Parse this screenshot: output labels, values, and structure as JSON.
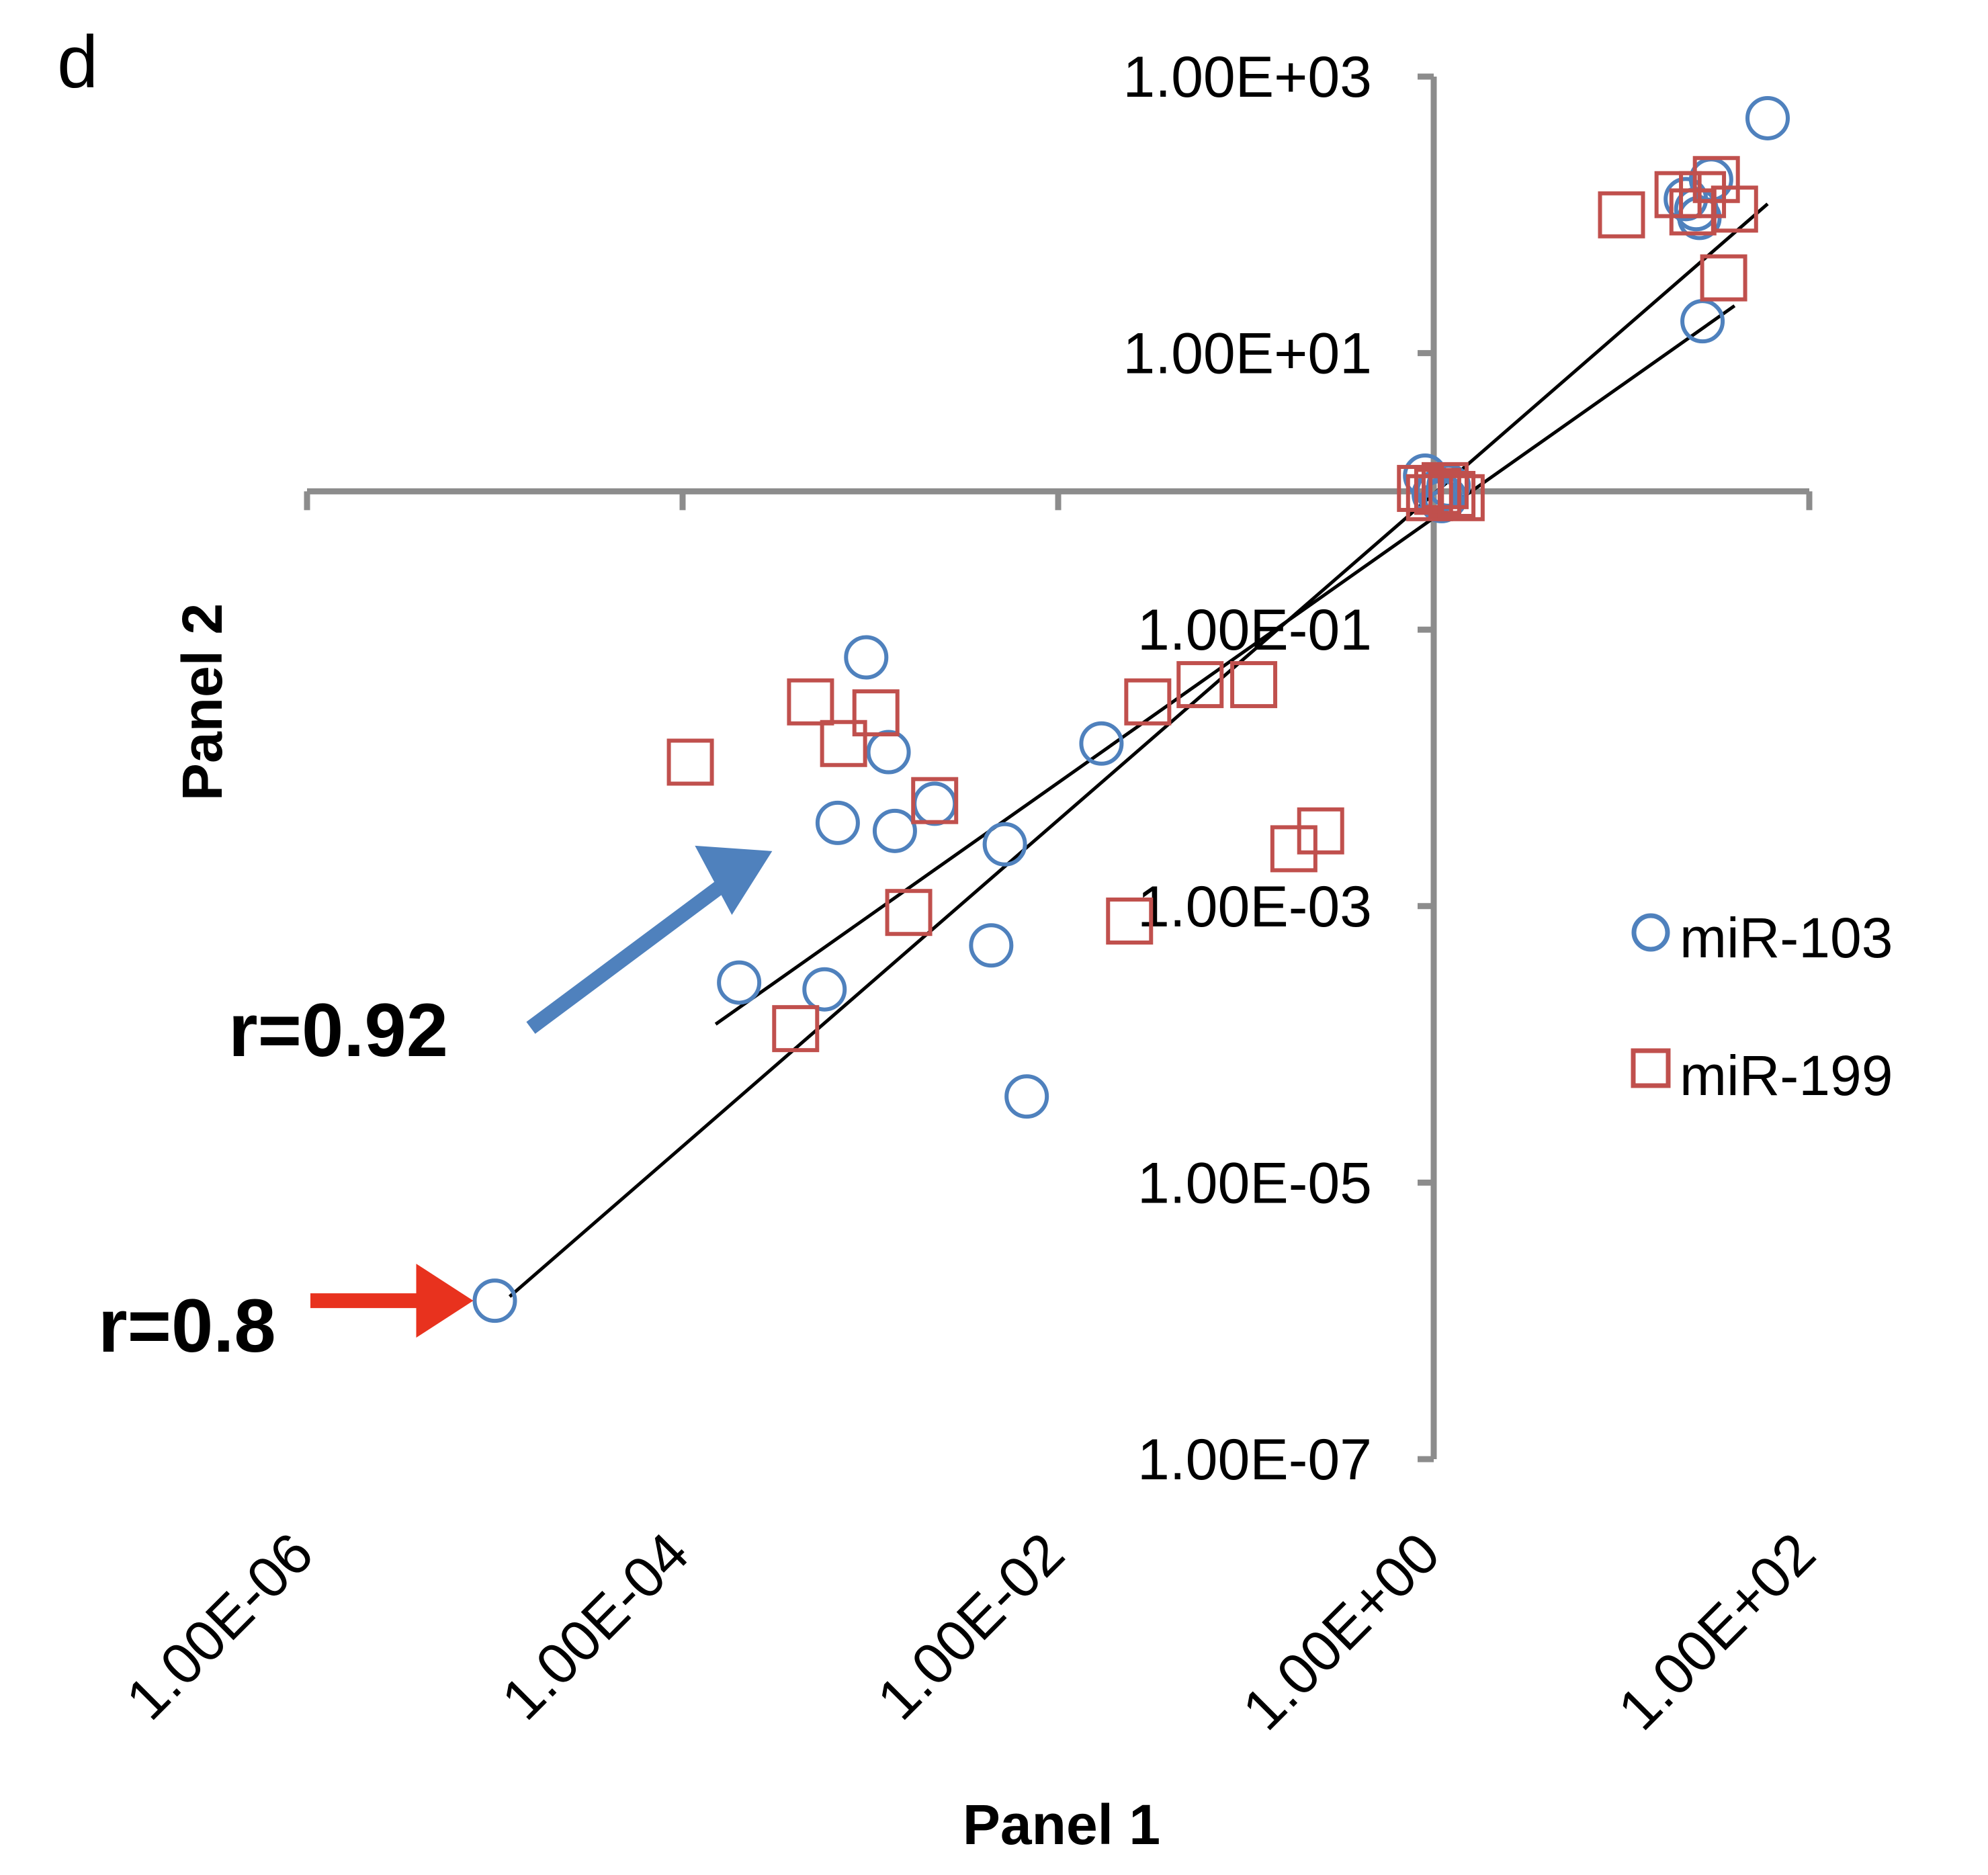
{
  "panel_label": "d",
  "colors": {
    "axis": "#8c8c8c",
    "series_a": "#4f81bd",
    "series_b": "#c0504d",
    "trendline": "#000000",
    "arrow_a": "#4f81bd",
    "arrow_b": "#e8321e"
  },
  "chart_data": {
    "type": "scatter",
    "title": "",
    "xlabel": "Panel 1",
    "ylabel": "Panel 2",
    "x_scale": "log",
    "y_scale": "log",
    "xlim": [
      1e-06,
      100
    ],
    "ylim": [
      1e-07,
      1000
    ],
    "x_tick_values": [
      1e-06,
      0.0001,
      0.01,
      1,
      100
    ],
    "x_tick_labels": [
      "1.00E-06",
      "1.00E-04",
      "1.00E-02",
      "1.00E+00",
      "1.00E+02"
    ],
    "y_tick_values": [
      1e-07,
      1e-05,
      0.001,
      0.1,
      10,
      1000
    ],
    "y_tick_labels": [
      "1.00E-07",
      "1.00E-05",
      "1.00E-03",
      "1.00E-01",
      "1.00E+01",
      "1.00E+03"
    ],
    "axes_cross_at": {
      "x": 1,
      "y": 1
    },
    "grid": false,
    "legend_position": "right",
    "series": [
      {
        "name": "miR-103",
        "marker": "circle",
        "points": [
          [
            1e-05,
            1.4e-06
          ],
          [
            0.0002,
            0.00028
          ],
          [
            0.00057,
            0.00025
          ],
          [
            0.00067,
            0.004
          ],
          [
            0.00095,
            0.063
          ],
          [
            0.00125,
            0.013
          ],
          [
            0.00135,
            0.0035
          ],
          [
            0.0022,
            0.0055
          ],
          [
            0.0052,
            0.0028
          ],
          [
            0.0044,
            0.00052
          ],
          [
            0.0068,
            4.2e-05
          ],
          [
            0.017,
            0.015
          ],
          [
            0.9,
            1.3
          ],
          [
            1.05,
            1.0
          ],
          [
            1.1,
            0.85
          ],
          [
            1.15,
            0.9
          ],
          [
            1.0,
            0.95
          ],
          [
            1.2,
            1.1
          ],
          [
            22,
            130
          ],
          [
            25,
            110
          ],
          [
            26,
            95
          ],
          [
            27,
            17
          ],
          [
            30,
            180
          ],
          [
            60,
            500
          ]
        ]
      },
      {
        "name": "miR-199",
        "marker": "square",
        "points": [
          [
            0.00011,
            0.011
          ],
          [
            0.0004,
            0.00013
          ],
          [
            0.00048,
            0.03
          ],
          [
            0.00072,
            0.015
          ],
          [
            0.00107,
            0.025
          ],
          [
            0.0016,
            0.0009
          ],
          [
            0.0022,
            0.0058
          ],
          [
            0.024,
            0.00078
          ],
          [
            0.03,
            0.03
          ],
          [
            0.057,
            0.04
          ],
          [
            0.11,
            0.04
          ],
          [
            0.18,
            0.0026
          ],
          [
            0.25,
            0.0035
          ],
          [
            0.85,
            1.05
          ],
          [
            0.95,
            0.9
          ],
          [
            1.05,
            1.0
          ],
          [
            1.15,
            1.1
          ],
          [
            1.25,
            0.95
          ],
          [
            1.4,
            0.9
          ],
          [
            10,
            100
          ],
          [
            20,
            140
          ],
          [
            24,
            105
          ],
          [
            27,
            140
          ],
          [
            32,
            180
          ],
          [
            40,
            110
          ],
          [
            35,
            35
          ]
        ]
      }
    ],
    "trendlines": [
      {
        "x": [
          0.00015,
          40
        ],
        "y": [
          0.00014,
          22
        ]
      },
      {
        "x": [
          1.2e-05,
          60
        ],
        "y": [
          1.5e-06,
          120
        ]
      }
    ],
    "annotations": [
      {
        "text": "r=0.92",
        "arrow_tip": [
          0.0003,
          0.0025
        ]
      },
      {
        "text": "r=0.8",
        "arrow_tip": [
          1e-05,
          1.4e-06
        ]
      }
    ]
  }
}
